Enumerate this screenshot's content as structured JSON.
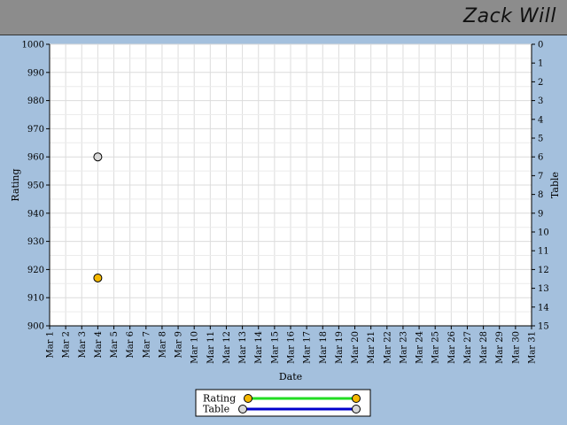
{
  "header": {
    "name": "Zack Will"
  },
  "chart_data": {
    "type": "scatter",
    "xlabel": "Date",
    "ylabel_left": "Rating",
    "ylabel_right": "Table",
    "categories": [
      "Mar 1",
      "Mar 2",
      "Mar 3",
      "Mar 4",
      "Mar 5",
      "Mar 6",
      "Mar 7",
      "Mar 8",
      "Mar 9",
      "Mar 10",
      "Mar 11",
      "Mar 12",
      "Mar 13",
      "Mar 14",
      "Mar 15",
      "Mar 16",
      "Mar 17",
      "Mar 18",
      "Mar 19",
      "Mar 20",
      "Mar 21",
      "Mar 22",
      "Mar 23",
      "Mar 24",
      "Mar 25",
      "Mar 26",
      "Mar 27",
      "Mar 28",
      "Mar 29",
      "Mar 30",
      "Mar 31"
    ],
    "ylim_left": [
      900,
      1000
    ],
    "yticks_left": [
      900,
      910,
      920,
      930,
      940,
      950,
      960,
      970,
      980,
      990,
      1000
    ],
    "ylim_right": [
      0,
      15
    ],
    "right_axis_inverted": true,
    "yticks_right": [
      0,
      1,
      2,
      3,
      4,
      5,
      6,
      7,
      8,
      9,
      10,
      11,
      12,
      13,
      14,
      15
    ],
    "grid": true,
    "legend_position": "bottom",
    "series": [
      {
        "name": "Rating",
        "axis": "left",
        "line_color": "#22dd22",
        "marker_color": "#f5b800",
        "points": [
          {
            "x": "Mar 4",
            "y": 917
          }
        ]
      },
      {
        "name": "Table",
        "axis": "right",
        "line_color": "#0000cc",
        "marker_color": "#d8d8d8",
        "points": [
          {
            "x": "Mar 4",
            "y": 6
          }
        ]
      }
    ]
  }
}
